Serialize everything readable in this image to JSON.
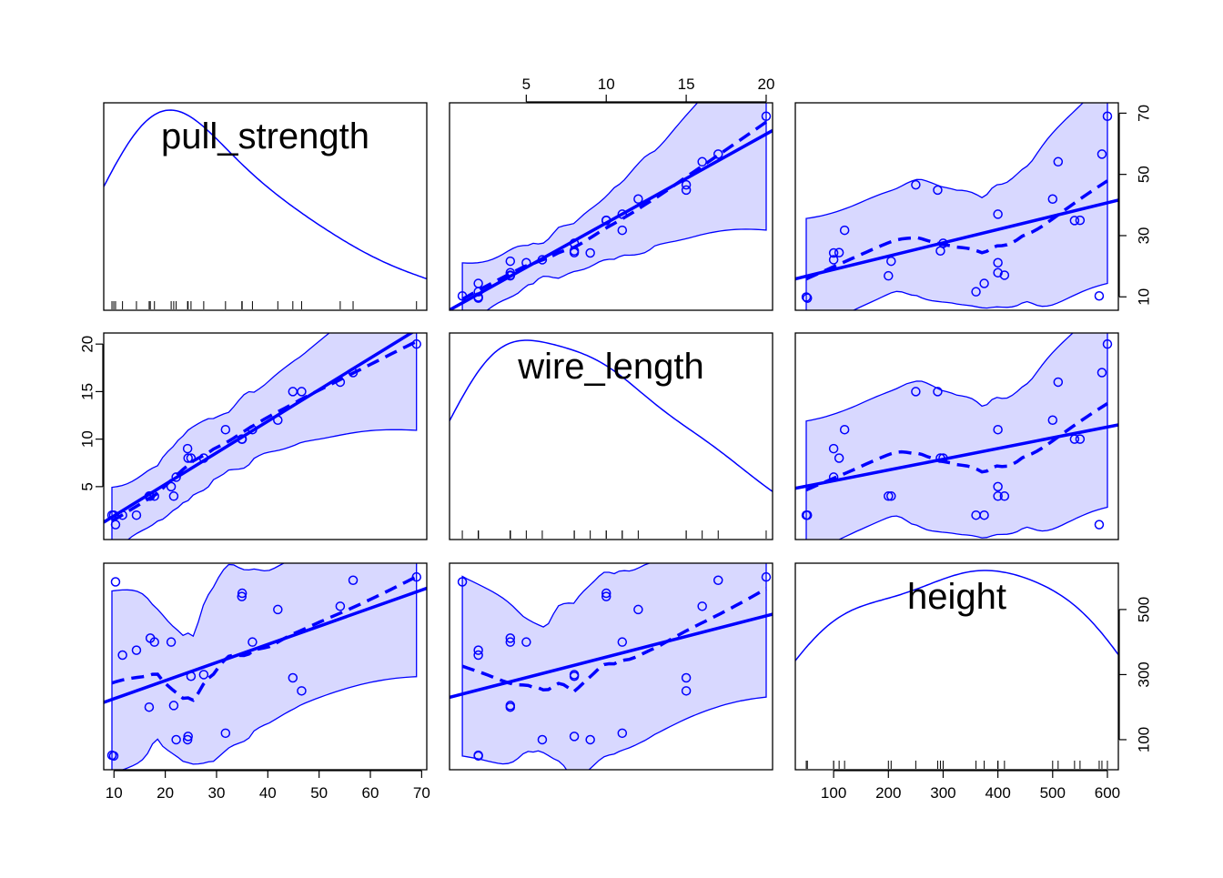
{
  "chart_data": {
    "type": "scatter",
    "variables": [
      "pull_strength",
      "wire_length",
      "height"
    ],
    "axes": {
      "pull_strength": {
        "ticks": [
          10,
          20,
          30,
          40,
          50,
          60,
          70
        ],
        "tick_labels": [
          "10",
          "20",
          "30",
          "40",
          "50",
          "60",
          "70"
        ],
        "range": [
          8,
          71
        ]
      },
      "wire_length": {
        "ticks": [
          5,
          10,
          15,
          20
        ],
        "tick_labels": [
          "5",
          "10",
          "15",
          "20"
        ],
        "range": [
          0.2,
          20.4
        ]
      },
      "height": {
        "ticks": [
          100,
          200,
          300,
          400,
          500,
          600
        ],
        "tick_labels": [
          "100",
          "200",
          "300",
          "400",
          "500",
          "600"
        ],
        "range": [
          30,
          620
        ]
      }
    },
    "outer_axis_labels": {
      "top_wire_length": [
        "5",
        "10",
        "15",
        "20"
      ],
      "right_pull_strength": [
        "10",
        "30",
        "50",
        "70"
      ],
      "left_wire_length": [
        "5",
        "10",
        "15",
        "20"
      ],
      "right_height": [
        "100",
        "300",
        "500"
      ],
      "bottom_pull_strength": [
        "10",
        "20",
        "30",
        "40",
        "50",
        "60",
        "70"
      ],
      "bottom_height": [
        "100",
        "200",
        "300",
        "400",
        "500",
        "600"
      ]
    },
    "observations": [
      {
        "pull_strength": 9.95,
        "wire_length": 2,
        "height": 50
      },
      {
        "pull_strength": 24.45,
        "wire_length": 8,
        "height": 110
      },
      {
        "pull_strength": 31.75,
        "wire_length": 11,
        "height": 120
      },
      {
        "pull_strength": 35.0,
        "wire_length": 10,
        "height": 550
      },
      {
        "pull_strength": 25.02,
        "wire_length": 8,
        "height": 295
      },
      {
        "pull_strength": 16.86,
        "wire_length": 4,
        "height": 200
      },
      {
        "pull_strength": 14.38,
        "wire_length": 2,
        "height": 375
      },
      {
        "pull_strength": 9.6,
        "wire_length": 2,
        "height": 52
      },
      {
        "pull_strength": 24.35,
        "wire_length": 9,
        "height": 100
      },
      {
        "pull_strength": 27.5,
        "wire_length": 8,
        "height": 300
      },
      {
        "pull_strength": 17.08,
        "wire_length": 4,
        "height": 412
      },
      {
        "pull_strength": 37.0,
        "wire_length": 11,
        "height": 400
      },
      {
        "pull_strength": 41.95,
        "wire_length": 12,
        "height": 500
      },
      {
        "pull_strength": 11.66,
        "wire_length": 2,
        "height": 360
      },
      {
        "pull_strength": 21.65,
        "wire_length": 4,
        "height": 205
      },
      {
        "pull_strength": 17.89,
        "wire_length": 4,
        "height": 400
      },
      {
        "pull_strength": 69.0,
        "wire_length": 20,
        "height": 600
      },
      {
        "pull_strength": 10.3,
        "wire_length": 1,
        "height": 585
      },
      {
        "pull_strength": 34.93,
        "wire_length": 10,
        "height": 540
      },
      {
        "pull_strength": 46.59,
        "wire_length": 15,
        "height": 250
      },
      {
        "pull_strength": 44.88,
        "wire_length": 15,
        "height": 290
      },
      {
        "pull_strength": 54.12,
        "wire_length": 16,
        "height": 510
      },
      {
        "pull_strength": 56.63,
        "wire_length": 17,
        "height": 590
      },
      {
        "pull_strength": 22.13,
        "wire_length": 6,
        "height": 100
      },
      {
        "pull_strength": 21.15,
        "wire_length": 5,
        "height": 400
      }
    ],
    "colors": {
      "points": "#0000ff",
      "band_fill": "#d8d8ff",
      "lines": "#0000ff"
    }
  }
}
